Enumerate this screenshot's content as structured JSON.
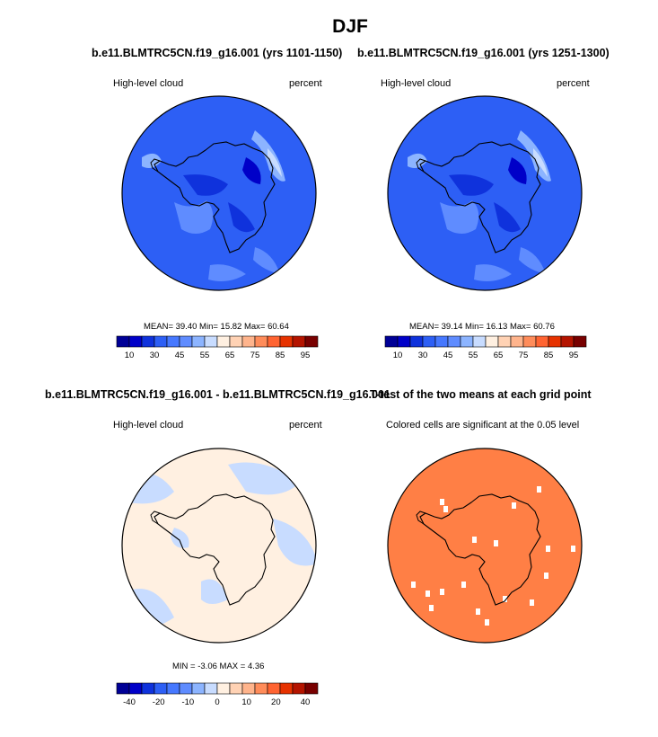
{
  "figure": {
    "season_title": "DJF"
  },
  "panels": [
    {
      "id": "case1",
      "title": "b.e11.BLMTRC5CN.f19_g16.001 (yrs 1101-1150)",
      "left_label": "High-level cloud",
      "right_label": "percent",
      "stats": "MEAN=  39.40  Min=  15.82  Max=  60.64"
    },
    {
      "id": "case2",
      "title": "b.e11.BLMTRC5CN.f19_g16.001 (yrs 1251-1300)",
      "left_label": "High-level cloud",
      "right_label": "percent",
      "stats": "MEAN=  39.14  Min=  16.13  Max=  60.76"
    },
    {
      "id": "diff",
      "title": "b.e11.BLMTRC5CN.f19_g16.001 - b.e11.BLMTRC5CN.f19_g16.001",
      "left_label": "High-level cloud",
      "right_label": "percent",
      "stats": "MIN =  -3.06 MAX =   4.36"
    },
    {
      "id": "ttest",
      "title": "T-test of the two means at each grid point",
      "left_label": "Colored cells are significant at the 0.05 level"
    }
  ],
  "colors": {
    "mean_colorbar": [
      "#000096",
      "#0000c8",
      "#0f32dc",
      "#2d5ff5",
      "#4678ff",
      "#5f8cff",
      "#8cb4ff",
      "#c8dcff",
      "#fff0e1",
      "#ffd2b4",
      "#ffb48c",
      "#ff8c5a",
      "#ff6432",
      "#e63200",
      "#b41400",
      "#780000"
    ],
    "diff_colorbar": [
      "#000096",
      "#0000c8",
      "#0f32dc",
      "#2d5ff5",
      "#4678ff",
      "#5f8cff",
      "#8cb4ff",
      "#c8dcff",
      "#fff0e1",
      "#ffd2b4",
      "#ffb48c",
      "#ff8c5a",
      "#ff6432",
      "#e63200",
      "#b41400",
      "#780000"
    ],
    "significant_cell": "#ff7f45"
  },
  "chart_data": [
    {
      "type": "heatmap",
      "panel": "case1",
      "title": "b.e11.BLMTRC5CN.f19_g16.001 (yrs 1101-1150)",
      "variable": "High-level cloud",
      "units": "percent",
      "projection": "south polar stereographic",
      "mean": 39.4,
      "min": 15.82,
      "max": 60.64,
      "colorbar_ticks": [
        "10",
        "30",
        "45",
        "55",
        "65",
        "75",
        "85",
        "95"
      ]
    },
    {
      "type": "heatmap",
      "panel": "case2",
      "title": "b.e11.BLMTRC5CN.f19_g16.001 (yrs 1251-1300)",
      "variable": "High-level cloud",
      "units": "percent",
      "projection": "south polar stereographic",
      "mean": 39.14,
      "min": 16.13,
      "max": 60.76,
      "colorbar_ticks": [
        "10",
        "30",
        "45",
        "55",
        "65",
        "75",
        "85",
        "95"
      ]
    },
    {
      "type": "heatmap",
      "panel": "diff",
      "title": "b.e11.BLMTRC5CN.f19_g16.001 - b.e11.BLMTRC5CN.f19_g16.001",
      "variable": "High-level cloud",
      "units": "percent",
      "projection": "south polar stereographic",
      "min": -3.06,
      "max": 4.36,
      "colorbar_ticks": [
        "-40",
        "-20",
        "-10",
        "0",
        "10",
        "20",
        "40"
      ]
    },
    {
      "type": "heatmap",
      "panel": "ttest",
      "title": "T-test of the two means at each grid point",
      "projection": "south polar stereographic",
      "note": "Colored cells are significant at the 0.05 level"
    }
  ]
}
